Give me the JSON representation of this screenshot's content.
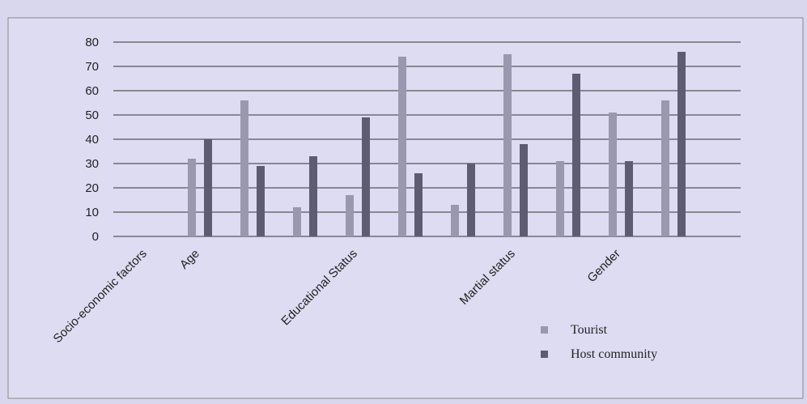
{
  "chart_data": {
    "type": "bar",
    "categories": [
      "Socio-economic factors",
      "Age",
      null,
      null,
      "Educational Status",
      null,
      null,
      "Martial status",
      null,
      "Gender",
      null
    ],
    "series": [
      {
        "name": "Tourist",
        "color": "#9a98ae",
        "values": [
          null,
          32,
          56,
          12,
          17,
          74,
          13,
          75,
          31,
          51,
          56
        ]
      },
      {
        "name": "Host community",
        "color": "#5e5c72",
        "values": [
          null,
          40,
          29,
          33,
          49,
          26,
          30,
          38,
          67,
          31,
          76
        ]
      }
    ],
    "ylim": [
      0,
      80
    ],
    "yticks": [
      0,
      10,
      20,
      30,
      40,
      50,
      60,
      70,
      80
    ],
    "grid": true,
    "legend": "bottom-right"
  }
}
